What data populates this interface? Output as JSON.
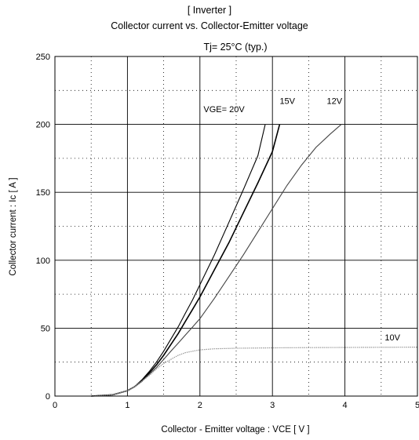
{
  "chart_data": {
    "type": "line",
    "title": "[ Inverter ]",
    "subtitle": "Collector current  vs.  Collector-Emitter voltage",
    "condition": "Tj= 25°C  (typ.)",
    "xlabel": "Collector - Emitter voltage  :  VCE  [ V ]",
    "ylabel": "Collector current  :  Ic  [ A ]",
    "xlim": [
      0,
      5
    ],
    "ylim": [
      0,
      250
    ],
    "xticks": [
      0,
      1,
      2,
      3,
      4,
      5
    ],
    "yticks": [
      0,
      50,
      100,
      150,
      200,
      250
    ],
    "grid": {
      "major": "solid",
      "minor": "dotted",
      "x_minor_step": 0.5,
      "y_minor_step": 25
    },
    "legend": "none",
    "series": [
      {
        "name": "VGE= 20V",
        "color": "#000000",
        "x": [
          0.5,
          0.8,
          1.0,
          1.1,
          1.2,
          1.3,
          1.4,
          1.5,
          1.6,
          1.7,
          1.8,
          1.9,
          2.0,
          2.2,
          2.4,
          2.6,
          2.8,
          2.9
        ],
        "y": [
          0,
          1,
          4,
          7,
          12,
          18,
          25,
          33,
          42,
          51,
          61,
          71,
          82,
          104,
          128,
          152,
          177,
          200
        ]
      },
      {
        "name": "15V",
        "color": "#000000",
        "x": [
          0.5,
          0.8,
          1.0,
          1.1,
          1.2,
          1.3,
          1.4,
          1.5,
          1.6,
          1.7,
          1.8,
          1.9,
          2.0,
          2.2,
          2.4,
          2.6,
          2.8,
          3.0,
          3.1
        ],
        "y": [
          0,
          1,
          4,
          7,
          11,
          17,
          23,
          30,
          38,
          46,
          55,
          64,
          73,
          93,
          113,
          135,
          157,
          180,
          200
        ]
      },
      {
        "name": "12V",
        "color": "#444444",
        "x": [
          0.5,
          0.8,
          1.0,
          1.1,
          1.2,
          1.3,
          1.4,
          1.5,
          1.6,
          1.7,
          1.8,
          1.9,
          2.0,
          2.2,
          2.4,
          2.6,
          2.8,
          3.0,
          3.2,
          3.4,
          3.6,
          3.8,
          3.95
        ],
        "y": [
          0,
          1,
          4,
          7,
          11,
          16,
          21,
          27,
          33,
          39,
          45,
          51,
          57,
          72,
          88,
          104,
          121,
          138,
          155,
          170,
          183,
          193,
          200
        ]
      },
      {
        "name": "10V",
        "color": "#999999",
        "x": [
          0.5,
          0.8,
          1.0,
          1.1,
          1.2,
          1.3,
          1.4,
          1.5,
          1.6,
          1.7,
          1.8,
          1.9,
          2.0,
          2.2,
          2.5,
          3.0,
          3.5,
          4.0,
          4.5,
          5.0
        ],
        "y": [
          0,
          1,
          4,
          7,
          11,
          15,
          20,
          24,
          27,
          30,
          32,
          33,
          34,
          34.8,
          35.2,
          35.5,
          35.7,
          35.8,
          35.9,
          36
        ]
      }
    ],
    "annotations": [
      {
        "text": "VGE= 20V",
        "x": 2.05,
        "y": 209
      },
      {
        "text": "15V",
        "x": 3.1,
        "y": 215
      },
      {
        "text": "12V",
        "x": 3.75,
        "y": 215
      },
      {
        "text": "10V",
        "x": 4.55,
        "y": 41
      }
    ]
  }
}
